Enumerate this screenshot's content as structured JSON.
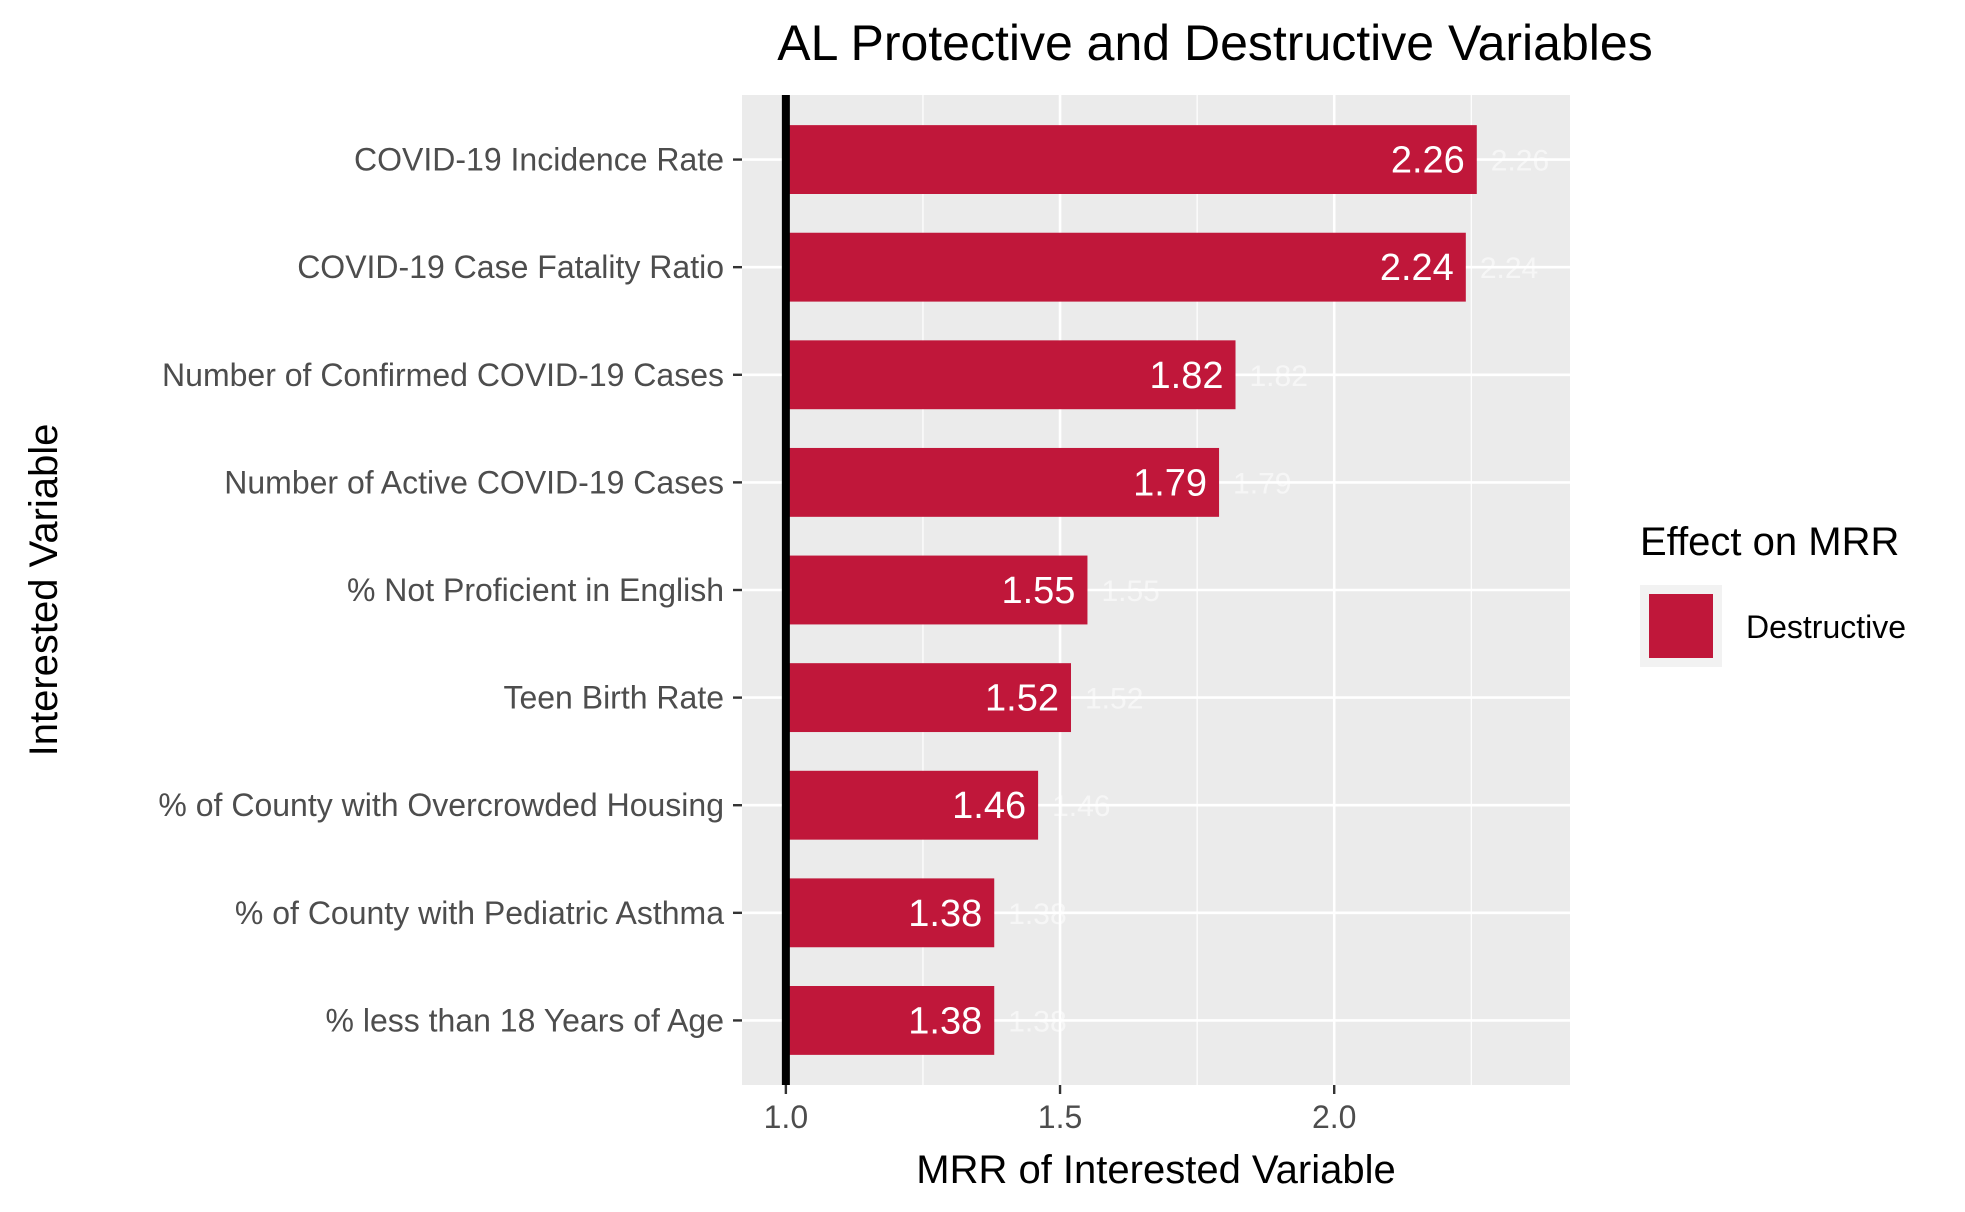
{
  "chart_data": {
    "type": "bar",
    "orientation": "horizontal",
    "title": "AL Protective and Destructive Variables",
    "xlabel": "MRR of Interested Variable",
    "ylabel": "Interested Variable",
    "categories": [
      "COVID-19 Incidence Rate",
      "COVID-19 Case Fatality Ratio",
      "Number of Confirmed COVID-19 Cases",
      "Number of Active COVID-19 Cases",
      "% Not Proficient in English",
      "Teen Birth Rate",
      "% of County with Overcrowded Housing",
      "% of County with Pediatric Asthma",
      "% less than 18 Years of Age"
    ],
    "values": [
      2.26,
      2.24,
      1.82,
      1.79,
      1.55,
      1.52,
      1.46,
      1.38,
      1.38
    ],
    "value_labels": [
      "2.26",
      "2.24",
      "1.82",
      "1.79",
      "1.55",
      "1.52",
      "1.46",
      "1.38",
      "1.38"
    ],
    "baseline": 1.0,
    "xlim": [
      0.92,
      2.43
    ],
    "xticks": [
      1.0,
      1.5,
      2.0
    ],
    "xtick_labels": [
      "1.0",
      "1.5",
      "2.0"
    ],
    "grid": true,
    "legend": {
      "title": "Effect on MRR",
      "position": "right",
      "entries": [
        {
          "label": "Destructive",
          "color": "#c0173a"
        }
      ]
    },
    "colors": {
      "bar": "#c0173a",
      "panel": "#ebebeb",
      "grid": "#ffffff",
      "baseline": "#000000"
    }
  }
}
